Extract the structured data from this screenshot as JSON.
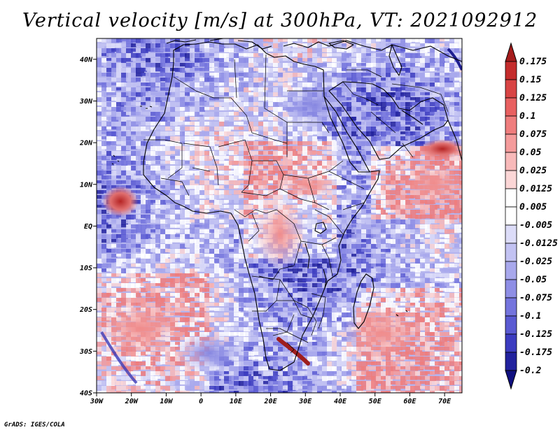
{
  "title": "Vertical velocity [m/s] at 300hPa, VT: 2021092912",
  "credit": "GrADS: IGES/COLA",
  "chart_data": {
    "type": "heatmap",
    "title": "Vertical velocity [m/s] at 300hPa, VT: 2021092912",
    "variable": "Vertical velocity",
    "units": "m/s",
    "level": "300hPa",
    "valid_time": "2021092912",
    "lon_range": [
      -30,
      75
    ],
    "lat_range": [
      -40,
      45
    ],
    "lon_ticks": [
      "30W",
      "20W",
      "10W",
      "0",
      "10E",
      "20E",
      "30E",
      "40E",
      "50E",
      "60E",
      "70E"
    ],
    "lat_ticks": [
      "40N",
      "30N",
      "20N",
      "10N",
      "EQ",
      "10S",
      "20S",
      "30S",
      "40S"
    ],
    "colorbar": {
      "labels": [
        "0.175",
        "0.15",
        "0.125",
        "0.1",
        "0.075",
        "0.05",
        "0.025",
        "0.0125",
        "0.005",
        "-0.005",
        "-0.0125",
        "-0.025",
        "-0.05",
        "-0.075",
        "-0.1",
        "-0.125",
        "-0.175",
        "-0.2"
      ],
      "colors": [
        "#a51c1c",
        "#c42c2c",
        "#d84444",
        "#e86060",
        "#ef7d7d",
        "#f49b9b",
        "#f8b9b9",
        "#fbd6d6",
        "#ffffff",
        "#ffffff",
        "#dcdcf8",
        "#c2c2f2",
        "#a8a8ec",
        "#8e8ee5",
        "#7474dd",
        "#5a5ad2",
        "#3c3cc0",
        "#22229e",
        "#101080"
      ]
    }
  }
}
